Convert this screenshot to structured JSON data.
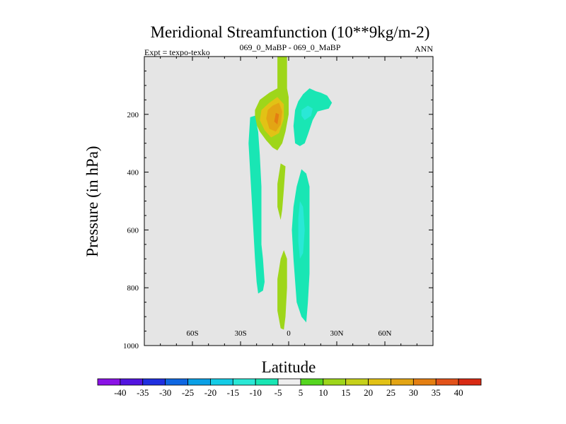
{
  "chart_data": {
    "type": "contour",
    "title": "Meridional Streamfunction (10**9kg/m-2)",
    "left_label": "Expt = texpo-texko",
    "center_label": "069_0_MaBP - 069_0_MaBP",
    "right_label": "ANN",
    "xlabel": "Latitude",
    "ylabel": "Pressure (in hPa)",
    "xlim": [
      -90,
      90
    ],
    "ylim": [
      1000,
      0
    ],
    "x_ticks": [
      {
        "value": -60,
        "label": "60S"
      },
      {
        "value": -30,
        "label": "30S"
      },
      {
        "value": 0,
        "label": "0"
      },
      {
        "value": 30,
        "label": "30N"
      },
      {
        "value": 60,
        "label": "60N"
      }
    ],
    "y_ticks": [
      {
        "value": 200,
        "label": "200"
      },
      {
        "value": 400,
        "label": "400"
      },
      {
        "value": 600,
        "label": "600"
      },
      {
        "value": 800,
        "label": "800"
      },
      {
        "value": 1000,
        "label": "1000"
      }
    ],
    "levels": [
      -40,
      -35,
      -30,
      -25,
      -20,
      -15,
      -10,
      -5,
      5,
      10,
      15,
      20,
      25,
      30,
      35,
      40
    ],
    "colorbar_labels": [
      "-40",
      "-35",
      "-30",
      "-25",
      "-20",
      "-15",
      "-10",
      "-5",
      "5",
      "10",
      "15",
      "20",
      "25",
      "30",
      "35",
      "40"
    ],
    "colors": [
      "#8a12e6",
      "#5214e0",
      "#1f2fe0",
      "#0f67e2",
      "#0aa0e6",
      "#14cce6",
      "#2ae8d6",
      "#19e6b4",
      "#eeeeee",
      "#55d61f",
      "#9ed61a",
      "#c6d11a",
      "#e2c215",
      "#e3a514",
      "#e47f12",
      "#e2521a",
      "#d92a14"
    ],
    "background": "#e5e5e5",
    "features": [
      {
        "name": "upper-positive-cell",
        "layers": [
          {
            "value": 10,
            "points": [
              [
                -7,
                0
              ],
              [
                -1,
                0
              ],
              [
                -1,
                110
              ],
              [
                0,
                140
              ],
              [
                0,
                200
              ],
              [
                -2,
                260
              ],
              [
                -4,
                300
              ],
              [
                -7,
                325
              ],
              [
                -10,
                315
              ],
              [
                -14,
                290
              ],
              [
                -18,
                260
              ],
              [
                -21,
                225
              ],
              [
                -21,
                185
              ],
              [
                -18,
                150
              ],
              [
                -12,
                125
              ],
              [
                -7,
                110
              ]
            ]
          },
          {
            "value": 20,
            "points": [
              [
                -12,
                160
              ],
              [
                -7,
                140
              ],
              [
                -3,
                165
              ],
              [
                -3,
                215
              ],
              [
                -6,
                265
              ],
              [
                -11,
                280
              ],
              [
                -15,
                255
              ],
              [
                -18,
                220
              ],
              [
                -17,
                185
              ]
            ]
          },
          {
            "value": 25,
            "points": [
              [
                -10,
                170
              ],
              [
                -6,
                160
              ],
              [
                -4,
                190
              ],
              [
                -5,
                235
              ],
              [
                -8,
                260
              ],
              [
                -12,
                250
              ],
              [
                -14,
                215
              ],
              [
                -13,
                185
              ]
            ]
          },
          {
            "value": 30,
            "points": [
              [
                -8,
                195
              ],
              [
                -6,
                200
              ],
              [
                -7,
                235
              ],
              [
                -9,
                225
              ]
            ]
          }
        ]
      },
      {
        "name": "upper-negative-cell",
        "layers": [
          {
            "value": -10,
            "points": [
              [
                9,
                130
              ],
              [
                13,
                110
              ],
              [
                17,
                120
              ],
              [
                20,
                125
              ],
              [
                24,
                135
              ],
              [
                27,
                160
              ],
              [
                25,
                180
              ],
              [
                18,
                190
              ],
              [
                15,
                220
              ],
              [
                12,
                270
              ],
              [
                10,
                300
              ],
              [
                7,
                310
              ],
              [
                4,
                300
              ],
              [
                3,
                240
              ],
              [
                4,
                185
              ],
              [
                6,
                155
              ]
            ]
          },
          {
            "value": -15,
            "points": [
              [
                8,
                185
              ],
              [
                12,
                170
              ],
              [
                15,
                180
              ],
              [
                14,
                205
              ],
              [
                10,
                220
              ],
              [
                8,
                205
              ]
            ]
          }
        ]
      },
      {
        "name": "lower-south-negative-cell",
        "layers": [
          {
            "value": -10,
            "points": [
              [
                -24,
                210
              ],
              [
                -21,
                205
              ],
              [
                -19,
                260
              ],
              [
                -18,
                340
              ],
              [
                -17,
                450
              ],
              [
                -17,
                560
              ],
              [
                -17,
                650
              ],
              [
                -16,
                700
              ],
              [
                -15,
                780
              ],
              [
                -16,
                810
              ],
              [
                -19,
                820
              ],
              [
                -20,
                780
              ],
              [
                -21,
                700
              ],
              [
                -22,
                600
              ],
              [
                -23,
                500
              ],
              [
                -24,
                400
              ],
              [
                -25,
                300
              ]
            ]
          }
        ]
      },
      {
        "name": "mid-positive-sliver",
        "layers": [
          {
            "value": 10,
            "points": [
              [
                -5,
                370
              ],
              [
                -2,
                380
              ],
              [
                -3,
                460
              ],
              [
                -4,
                530
              ],
              [
                -5,
                565
              ],
              [
                -7,
                520
              ],
              [
                -7,
                440
              ]
            ]
          }
        ]
      },
      {
        "name": "lower-north-negative-cell",
        "layers": [
          {
            "value": -10,
            "points": [
              [
                8,
                390
              ],
              [
                11,
                405
              ],
              [
                13,
                450
              ],
              [
                13,
                550
              ],
              [
                13,
                650
              ],
              [
                13,
                750
              ],
              [
                12,
                850
              ],
              [
                11,
                920
              ],
              [
                8,
                900
              ],
              [
                5,
                850
              ],
              [
                3,
                700
              ],
              [
                2,
                600
              ],
              [
                3,
                520
              ],
              [
                5,
                450
              ]
            ]
          },
          {
            "value": -15,
            "points": [
              [
                7,
                500
              ],
              [
                9,
                520
              ],
              [
                10,
                600
              ],
              [
                9,
                680
              ],
              [
                7,
                700
              ],
              [
                6,
                640
              ],
              [
                6,
                560
              ]
            ]
          }
        ]
      },
      {
        "name": "lower-positive-cell",
        "layers": [
          {
            "value": 10,
            "points": [
              [
                -3,
                670
              ],
              [
                -1,
                700
              ],
              [
                -1,
                800
              ],
              [
                -2,
                900
              ],
              [
                -3,
                945
              ],
              [
                -5,
                940
              ],
              [
                -7,
                880
              ],
              [
                -7,
                770
              ],
              [
                -5,
                700
              ]
            ]
          }
        ]
      }
    ]
  }
}
